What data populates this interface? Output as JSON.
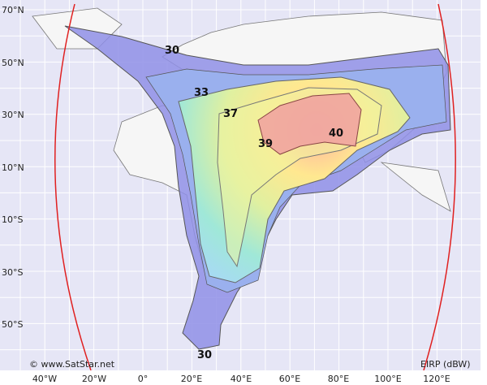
{
  "map": {
    "lat_labels": [
      "70°N",
      "50°N",
      "30°N",
      "10°N",
      "10°S",
      "30°S",
      "50°S"
    ],
    "lon_labels": [
      "40°W",
      "20°W",
      "0°",
      "20°E",
      "40°E",
      "60°E",
      "80°E",
      "100°E",
      "120°E"
    ],
    "contour_labels": [
      30,
      33,
      37,
      39,
      40,
      30
    ],
    "credit": "© www.SatStar.net",
    "legend": "EIRP (dBW)"
  }
}
